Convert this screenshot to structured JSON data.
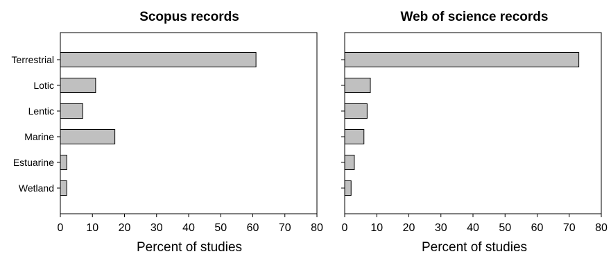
{
  "chart_data": [
    {
      "type": "bar",
      "orientation": "horizontal",
      "title": "Scopus records",
      "xlabel": "Percent of studies",
      "ylabel": "",
      "categories": [
        "Terrestrial",
        "Lotic",
        "Lentic",
        "Marine",
        "Estuarine",
        "Wetland"
      ],
      "values": [
        61,
        11,
        7,
        17,
        2,
        2
      ],
      "xlim": [
        0,
        80
      ],
      "xticks": [
        "0",
        "10",
        "20",
        "30",
        "40",
        "50",
        "60",
        "70",
        "80"
      ],
      "grid": false,
      "bar_color": "#c0c0c0"
    },
    {
      "type": "bar",
      "orientation": "horizontal",
      "title": "Web of science records",
      "xlabel": "Percent of studies",
      "ylabel": "",
      "categories": [
        "Terrestrial",
        "Lotic",
        "Lentic",
        "Marine",
        "Estuarine",
        "Wetland"
      ],
      "values": [
        73,
        8,
        7,
        6,
        3,
        2
      ],
      "xlim": [
        0,
        80
      ],
      "xticks": [
        "0",
        "10",
        "20",
        "30",
        "40",
        "50",
        "60",
        "70",
        "80"
      ],
      "grid": false,
      "bar_color": "#c0c0c0",
      "show_category_labels": false
    }
  ]
}
